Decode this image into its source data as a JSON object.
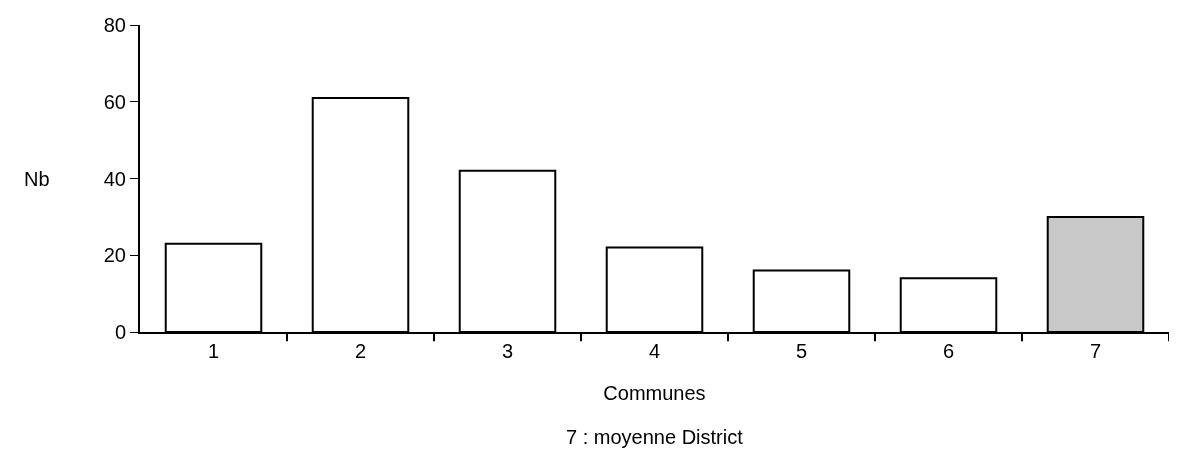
{
  "chart_data": {
    "type": "bar",
    "categories": [
      "1",
      "2",
      "3",
      "4",
      "5",
      "6",
      "7"
    ],
    "values": [
      23,
      61,
      42,
      22,
      16,
      14,
      30
    ],
    "colors": [
      "#ffffff",
      "#ffffff",
      "#ffffff",
      "#ffffff",
      "#ffffff",
      "#ffffff",
      "#c8c8c8"
    ],
    "xlabel": "Communes",
    "ylabel": "Nb",
    "annotations": [
      "7 : moyenne District"
    ],
    "ylim": [
      0,
      80
    ],
    "yticks": [
      0,
      20,
      40,
      60,
      80
    ]
  }
}
